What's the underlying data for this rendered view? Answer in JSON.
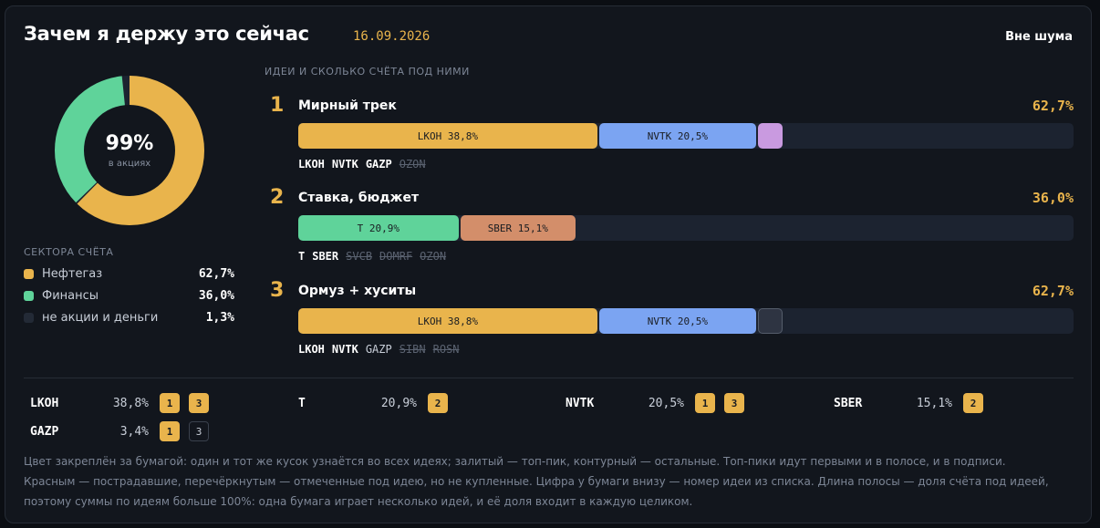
{
  "header": {
    "title": "Зачем я держу это сейчас",
    "date": "16.09.2026",
    "brand": "Вне шума"
  },
  "donut": {
    "percent": "99%",
    "subtitle": "в акциях",
    "segments": [
      {
        "name": "Нефтегаз",
        "value": 62.7,
        "color": "#e9b44c"
      },
      {
        "name": "Финансы",
        "value": 36.0,
        "color": "#5fd39a"
      },
      {
        "name": "не акции и деньги",
        "value": 1.3,
        "color": "#1c2330"
      }
    ]
  },
  "sectors": {
    "title": "СЕКТОРА СЧЁТА",
    "items": [
      {
        "name": "Нефтегаз",
        "value": "62,7%",
        "color": "#e9b44c"
      },
      {
        "name": "Финансы",
        "value": "36,0%",
        "color": "#5fd39a"
      },
      {
        "name": "не акции и деньги",
        "value": "1,3%",
        "color": "#232a36"
      }
    ]
  },
  "ideas_title": "ИДЕИ И СКОЛЬКО СЧЁТА ПОД НИМИ",
  "ideas": [
    {
      "num": "1",
      "name": "Мирный трек",
      "pct": "62,7%",
      "segments": [
        {
          "label": "LKOH 38,8%",
          "share": 38.8,
          "color": "#e9b44c"
        },
        {
          "label": "NVTK 20,5%",
          "share": 20.5,
          "color": "#7ba4f2"
        },
        {
          "label": "",
          "share": 3.4,
          "color": "#c99ae0"
        }
      ],
      "tickers": [
        {
          "t": "LKOH",
          "s": "top"
        },
        {
          "t": "NVTK",
          "s": "top"
        },
        {
          "t": "GAZP",
          "s": "top"
        },
        {
          "t": "OZON",
          "s": "struck"
        }
      ]
    },
    {
      "num": "2",
      "name": "Ставка, бюджет",
      "pct": "36,0%",
      "segments": [
        {
          "label": "T 20,9%",
          "share": 20.9,
          "color": "#5fd39a"
        },
        {
          "label": "SBER 15,1%",
          "share": 15.1,
          "color": "#d38e6a"
        }
      ],
      "tickers": [
        {
          "t": "T",
          "s": "top"
        },
        {
          "t": "SBER",
          "s": "top"
        },
        {
          "t": "SVCB",
          "s": "struck"
        },
        {
          "t": "DOMRF",
          "s": "struck"
        },
        {
          "t": "OZON",
          "s": "struck"
        }
      ]
    },
    {
      "num": "3",
      "name": "Ормуз + хуситы",
      "pct": "62,7%",
      "segments": [
        {
          "label": "LKOH 38,8%",
          "share": 38.8,
          "color": "#e9b44c"
        },
        {
          "label": "NVTK 20,5%",
          "share": 20.5,
          "color": "#7ba4f2"
        },
        {
          "label": "",
          "share": 3.4,
          "color": "#2e3442"
        }
      ],
      "tickers": [
        {
          "t": "LKOH",
          "s": "top"
        },
        {
          "t": "NVTK",
          "s": "top"
        },
        {
          "t": "GAZP",
          "s": "normal"
        },
        {
          "t": "SIBN",
          "s": "struck"
        },
        {
          "t": "ROSN",
          "s": "struck"
        }
      ]
    }
  ],
  "holdings": [
    {
      "ticker": "LKOH",
      "pct": "38,8%",
      "badges": [
        {
          "n": "1",
          "f": true
        },
        {
          "n": "3",
          "f": true
        }
      ]
    },
    {
      "ticker": "T",
      "pct": "20,9%",
      "badges": [
        {
          "n": "2",
          "f": true
        }
      ]
    },
    {
      "ticker": "NVTK",
      "pct": "20,5%",
      "badges": [
        {
          "n": "1",
          "f": true
        },
        {
          "n": "3",
          "f": true
        }
      ]
    },
    {
      "ticker": "SBER",
      "pct": "15,1%",
      "badges": [
        {
          "n": "2",
          "f": true
        }
      ]
    },
    {
      "ticker": "GAZP",
      "pct": "3,4%",
      "badges": [
        {
          "n": "1",
          "f": true
        },
        {
          "n": "3",
          "f": false
        }
      ]
    }
  ],
  "footnote": "Цвет закреплён за бумагой: один и тот же кусок узнаётся во всех идеях; залитый — топ-пик, контурный — остальные. Топ-пики идут первыми и в полосе, и в подписи. Красным — пострадавшие, перечёркнутым — отмеченные под идею, но не купленные. Цифра у бумаги внизу — номер идеи из списка. Длина полосы — доля счёта под идеей, поэтому суммы по идеям больше 100%: одна бумага играет несколько идей, и её доля входит в каждую целиком."
}
